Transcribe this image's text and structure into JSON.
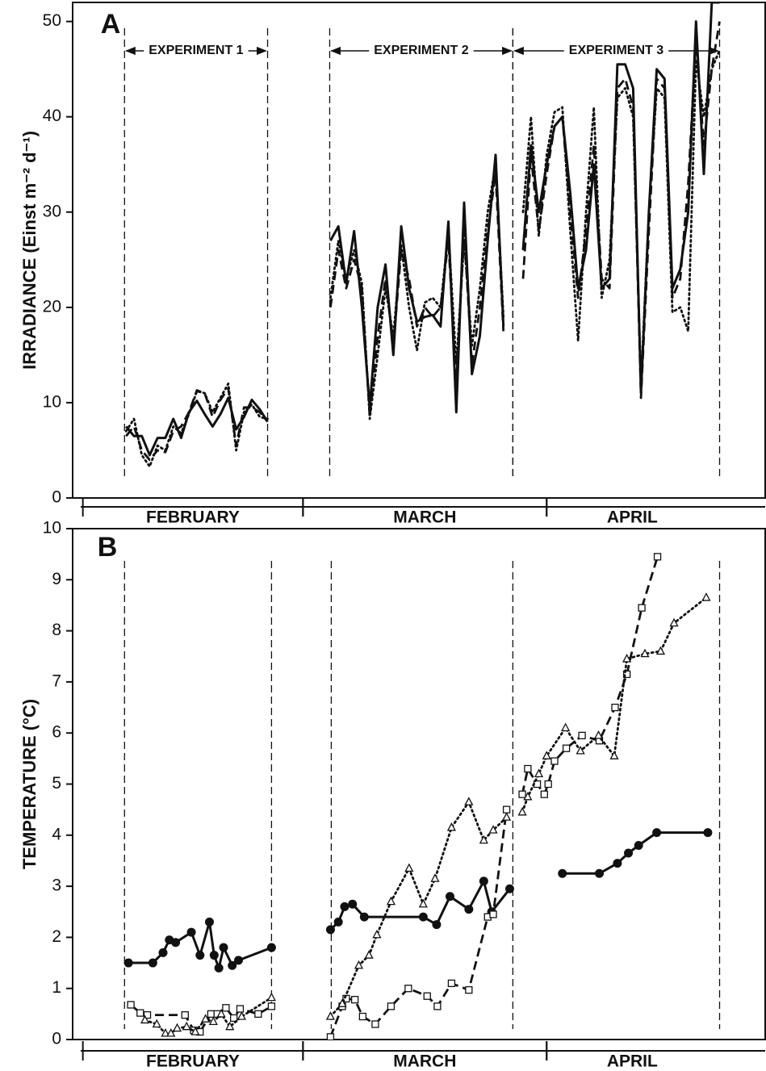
{
  "chart_data": [
    {
      "type": "line",
      "panel_label": "A",
      "y_label": "IRRADIANCE (Einst m⁻² d⁻¹)",
      "xlim": [
        -1.3,
        86.8
      ],
      "ylim": [
        0,
        52
      ],
      "yticks": [
        0,
        10,
        20,
        30,
        40,
        50
      ],
      "months": [
        {
          "name": "FEBRUARY",
          "start": 0,
          "end": 28
        },
        {
          "name": "MARCH",
          "start": 28,
          "end": 59
        },
        {
          "name": "APRIL",
          "start": 59,
          "end": 89
        }
      ],
      "experiments": [
        {
          "label": "EXPERIMENT 1",
          "start": 5.3,
          "end": 23.5
        },
        {
          "label": "EXPERIMENT  2",
          "start": 31.4,
          "end": 54.7
        },
        {
          "label": "EXPERIMENT  3",
          "start": 54.7,
          "end": 81.0
        }
      ],
      "x": [
        5.5,
        6.5,
        7.5,
        8.5,
        9.5,
        10.5,
        11.5,
        12.5,
        13.5,
        14.5,
        15.5,
        16.5,
        17.5,
        18.5,
        19.5,
        20.5,
        21.5,
        22.5,
        23.5,
        27,
        31.5,
        32.5,
        33.5,
        34.5,
        35.5,
        36.5,
        37.5,
        38.5,
        39.5,
        40.5,
        41.5,
        42.5,
        43.5,
        44.5,
        45.5,
        46.5,
        47.5,
        48.5,
        49.5,
        50.5,
        51.5,
        52.5,
        53.5,
        54.8,
        56,
        57,
        58,
        59,
        60,
        61,
        62,
        63,
        64,
        65,
        66,
        67,
        68,
        69,
        70,
        71,
        72,
        73,
        74,
        75,
        76,
        77,
        78,
        79,
        80,
        81
      ],
      "series": [
        {
          "line_style": "solid",
          "color": "#111111",
          "values": [
            7.5,
            6.5,
            6.5,
            4.5,
            6.3,
            6.3,
            8.3,
            6.3,
            9,
            10.2,
            8.8,
            7.5,
            8.8,
            10.5,
            7.2,
            8.5,
            10.3,
            9.3,
            8,
            null,
            27,
            28.5,
            22.5,
            28,
            20,
            9.5,
            20,
            24.5,
            15,
            28.5,
            22,
            18.5,
            19,
            19.2,
            18,
            29,
            9,
            31,
            13,
            17,
            27,
            36,
            18,
            null,
            26,
            37,
            30,
            35,
            39,
            40,
            32,
            22,
            26,
            35,
            22,
            23,
            45.5,
            45.5,
            43,
            11,
            30,
            45,
            44,
            22,
            24,
            30,
            50,
            34,
            52,
            52
          ]
        },
        {
          "line_style": "dashed",
          "color": "#111111",
          "values": [
            6.5,
            7.5,
            5,
            4,
            5,
            4.8,
            7,
            7.5,
            9,
            11.3,
            11,
            8.5,
            10.3,
            11.5,
            5.5,
            9.5,
            9.5,
            9,
            8,
            null,
            20,
            26,
            22,
            25,
            22,
            8.5,
            17,
            23,
            16,
            26,
            23,
            18,
            20,
            19,
            20,
            27,
            12,
            28,
            14,
            20,
            28,
            34,
            17.5,
            null,
            23,
            36,
            28,
            34,
            39,
            40,
            30,
            21,
            28,
            37,
            23,
            22,
            43,
            44,
            41,
            10.5,
            28,
            44,
            43,
            21,
            23,
            33,
            48,
            37,
            45,
            50
          ]
        },
        {
          "line_style": "dotted",
          "color": "#111111",
          "values": [
            7,
            8.3,
            4.5,
            3.3,
            5.5,
            5,
            7.5,
            6.8,
            8.8,
            11.2,
            11,
            9,
            10.5,
            12,
            5,
            9,
            9.8,
            8.5,
            8.3,
            null,
            21,
            27,
            23,
            26,
            22.5,
            8.3,
            15,
            22,
            17,
            26.5,
            20,
            15.5,
            20.5,
            21,
            20,
            28,
            14,
            27,
            16,
            22,
            30,
            35,
            19,
            null,
            30,
            40,
            27.5,
            36,
            40.5,
            41,
            28,
            16.5,
            30,
            41,
            21,
            25,
            42,
            43,
            40,
            12,
            30,
            43,
            42,
            19.5,
            20,
            17.5,
            46,
            40,
            45,
            47
          ]
        }
      ]
    },
    {
      "type": "line",
      "panel_label": "B",
      "y_label": "TEMPERATURE (°C)",
      "xlim": [
        -1.3,
        86.8
      ],
      "ylim": [
        0,
        10
      ],
      "yticks": [
        0,
        1,
        2,
        3,
        4,
        5,
        6,
        7,
        8,
        9,
        10
      ],
      "months": [
        {
          "name": "FEBRUARY",
          "start": 0,
          "end": 28
        },
        {
          "name": "MARCH",
          "start": 28,
          "end": 59
        },
        {
          "name": "APRIL",
          "start": 59,
          "end": 89
        }
      ],
      "bounds": [
        5.3,
        24.0,
        31.6,
        54.7,
        81.0
      ],
      "series": [
        {
          "line_style": "solid",
          "marker": "circle",
          "color": "#111111",
          "x": [
            5.8,
            8.9,
            10.2,
            11.0,
            11.8,
            13.8,
            14.9,
            16.1,
            16.7,
            17.3,
            17.9,
            19.0,
            19.8,
            24.0,
            28,
            31.5,
            32.5,
            33.3,
            34.3,
            35.8,
            43.3,
            45.0,
            46.7,
            49.1,
            51.0,
            52.0,
            54.3,
            57,
            61.0,
            65.7,
            68.0,
            69.4,
            70.7,
            73.0,
            79.5
          ],
          "values": [
            1.5,
            1.5,
            1.7,
            1.95,
            1.9,
            2.1,
            1.65,
            2.3,
            1.65,
            1.4,
            1.8,
            1.45,
            1.55,
            1.8,
            null,
            2.15,
            2.3,
            2.6,
            2.65,
            2.4,
            2.4,
            2.25,
            2.8,
            2.55,
            3.1,
            2.5,
            2.95,
            null,
            3.25,
            3.25,
            3.45,
            3.65,
            3.8,
            4.05,
            4.05
          ]
        },
        {
          "line_style": "dashed",
          "marker": "square",
          "color": "#111111",
          "x": [
            6.1,
            7.3,
            8.2,
            13.0,
            14.1,
            14.9,
            16.3,
            17.1,
            18.2,
            19.2,
            20.0,
            22.3,
            24.0,
            28,
            31.5,
            33.0,
            33.5,
            34.6,
            35.6,
            37.2,
            39.2,
            41.4,
            43.8,
            45.1,
            46.9,
            49.1,
            51.5,
            52.2,
            53.9,
            55,
            55.9,
            56.6,
            57.8,
            58.7,
            59.2,
            60.0,
            61.5,
            63.5,
            65.7,
            67.7,
            69.2,
            71.1,
            73.1
          ],
          "values": [
            0.68,
            0.52,
            0.48,
            0.48,
            0.18,
            0.15,
            0.5,
            0.5,
            0.62,
            0.42,
            0.6,
            0.5,
            0.65,
            null,
            0.05,
            0.65,
            0.8,
            0.78,
            0.45,
            0.3,
            0.65,
            1.0,
            0.85,
            0.65,
            1.1,
            0.97,
            2.4,
            2.45,
            4.5,
            null,
            4.8,
            5.3,
            5.0,
            4.8,
            5.0,
            5.45,
            5.7,
            5.95,
            5.85,
            6.5,
            7.15,
            8.45,
            9.45
          ]
        },
        {
          "line_style": "dotted",
          "marker": "triangle",
          "color": "#111111",
          "x": [
            7.9,
            9.4,
            10.5,
            11.2,
            12.0,
            13.2,
            14.3,
            15.6,
            16.6,
            17.6,
            18.7,
            20.2,
            24.0,
            28,
            31.5,
            33.0,
            35.1,
            36.4,
            37.4,
            39.2,
            41.5,
            43.3,
            44.8,
            46.9,
            49.1,
            51.0,
            52.2,
            53.9,
            55,
            55.9,
            56.6,
            58.0,
            59.0,
            61.4,
            63.3,
            65.6,
            67.6,
            69.2,
            71.5,
            73.5,
            75.2,
            79.3
          ],
          "values": [
            0.38,
            0.3,
            0.12,
            0.12,
            0.22,
            0.25,
            0.15,
            0.4,
            0.35,
            0.5,
            0.25,
            0.45,
            0.82,
            null,
            0.45,
            0.7,
            1.45,
            1.65,
            2.05,
            2.7,
            3.35,
            2.65,
            3.15,
            4.15,
            4.65,
            3.9,
            4.1,
            4.35,
            null,
            4.45,
            4.75,
            5.2,
            5.55,
            6.1,
            5.65,
            5.95,
            5.55,
            7.45,
            7.55,
            7.6,
            8.15,
            8.65
          ]
        }
      ]
    }
  ]
}
